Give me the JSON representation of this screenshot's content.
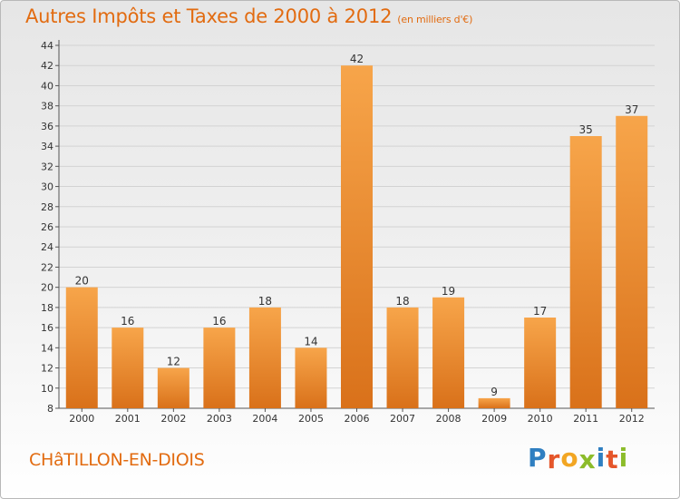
{
  "title": "Autres Impôts et Taxes de 2000 à 2012",
  "unit": "(en milliers d'€)",
  "town": "CHâTILLON-EN-DIOIS",
  "logo": {
    "letters": [
      "P",
      "r",
      "o",
      "x",
      "i",
      "t",
      "i"
    ],
    "colors": [
      "#2f7fc1",
      "#e5562a",
      "#f2a623",
      "#8cbc2a",
      "#2f7fc1",
      "#e5562a",
      "#8cbc2a"
    ]
  },
  "colors": {
    "bar_light": "#f7a54a",
    "bar_dark": "#d9711a",
    "title": "#e26b10"
  },
  "chart_data": {
    "type": "bar",
    "categories": [
      "2000",
      "2001",
      "2002",
      "2003",
      "2004",
      "2005",
      "2006",
      "2007",
      "2008",
      "2009",
      "2010",
      "2011",
      "2012"
    ],
    "values": [
      20,
      16,
      12,
      16,
      18,
      14,
      42,
      18,
      19,
      9,
      17,
      35,
      37
    ],
    "ylim": [
      8,
      44
    ],
    "yticks": [
      8,
      10,
      12,
      14,
      16,
      18,
      20,
      22,
      24,
      26,
      28,
      30,
      32,
      34,
      36,
      38,
      40,
      42,
      44
    ],
    "grid": true,
    "legend": "none"
  }
}
